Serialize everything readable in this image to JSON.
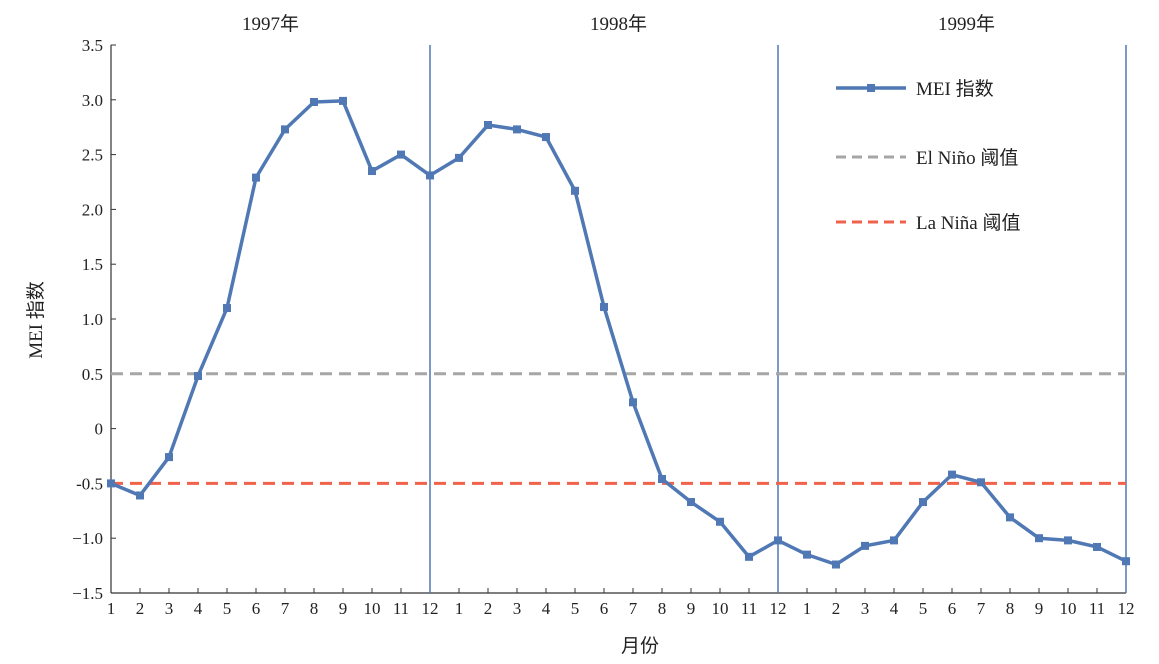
{
  "chart_data": {
    "type": "line",
    "xlabel": "月份",
    "ylabel": "MEI 指数",
    "ylim": [
      -1.5,
      3.5
    ],
    "yticks": [
      {
        "v": -1.5,
        "label": "−1.5"
      },
      {
        "v": -1.0,
        "label": "−1.0"
      },
      {
        "v": -0.5,
        "label": "-0.5"
      },
      {
        "v": 0,
        "label": "0"
      },
      {
        "v": 0.5,
        "label": "0.5"
      },
      {
        "v": 1.0,
        "label": "1.0"
      },
      {
        "v": 1.5,
        "label": "1.5"
      },
      {
        "v": 2.0,
        "label": "2.0"
      },
      {
        "v": 2.5,
        "label": "2.5"
      },
      {
        "v": 3.0,
        "label": "3.0"
      },
      {
        "v": 3.5,
        "label": "3.5"
      }
    ],
    "years": [
      "1997年",
      "1998年",
      "1999年"
    ],
    "months": [
      "1",
      "2",
      "3",
      "4",
      "5",
      "6",
      "7",
      "8",
      "9",
      "10",
      "11",
      "12"
    ],
    "grid": false,
    "legend_position": "top-right",
    "series": [
      {
        "name": "MEI 指数",
        "color": "#4f78b4",
        "style": "solid-square-markers",
        "values": [
          -0.5,
          -0.61,
          -0.26,
          0.48,
          1.1,
          2.29,
          2.73,
          2.98,
          2.99,
          2.35,
          2.5,
          2.31,
          2.47,
          2.77,
          2.73,
          2.66,
          2.17,
          1.11,
          0.24,
          -0.46,
          -0.67,
          -0.85,
          -1.17,
          -1.02,
          -1.15,
          -1.24,
          -1.07,
          -1.02,
          -0.67,
          -0.42,
          -0.49,
          -0.81,
          -1.0,
          -1.02,
          -1.08,
          -1.21
        ]
      },
      {
        "name": "El Niño 阈值",
        "color": "#a6a6a6",
        "style": "dashed",
        "value": 0.5
      },
      {
        "name": "La Niña 阈值",
        "color": "#f0624a",
        "style": "dashed",
        "value": -0.5
      }
    ],
    "separator_color": "#4f78b4"
  }
}
